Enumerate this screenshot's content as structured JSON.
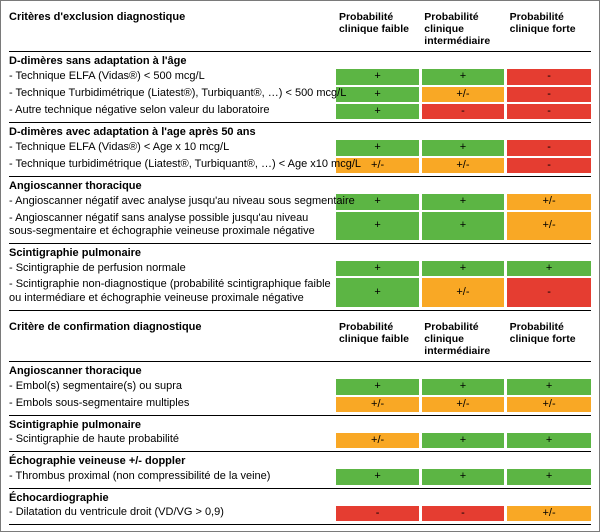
{
  "colors": {
    "green": "#5cb544",
    "orange": "#f9a825",
    "red": "#e53d31",
    "border": "#7a7a7a"
  },
  "symbols": {
    "plus": "+",
    "pm": "+/-",
    "minus": "-"
  },
  "headers": {
    "exclusion": "Critères d'exclusion diagnostique",
    "confirmation": "Critère de confirmation diagnostique",
    "faible": "Probabilité clinique faible",
    "inter": "Probabilité clinique intermédiaire",
    "forte": "Probabilité clinique forte"
  },
  "sections_exclusion": [
    {
      "title": "D-dimères sans adaptation à l'âge",
      "rows": [
        {
          "label": "- Technique ELFA (Vidas®) < 500 mcg/L",
          "cells": [
            "plus",
            "plus",
            "minus"
          ],
          "colors": [
            "green",
            "green",
            "red"
          ]
        },
        {
          "label": "- Technique Turbidimétrique (Liatest®), Turbiquant®, …) < 500 mcg/L",
          "cells": [
            "plus",
            "pm",
            "minus"
          ],
          "colors": [
            "green",
            "orange",
            "red"
          ]
        },
        {
          "label": "- Autre technique négative selon valeur du laboratoire",
          "cells": [
            "plus",
            "minus",
            "minus"
          ],
          "colors": [
            "green",
            "red",
            "red"
          ]
        }
      ]
    },
    {
      "title": "D-dimères avec adaptation à l'age après 50 ans",
      "rows": [
        {
          "label": "- Technique ELFA (Vidas®) < Age x 10 mcg/L",
          "cells": [
            "plus",
            "plus",
            "minus"
          ],
          "colors": [
            "green",
            "green",
            "red"
          ]
        },
        {
          "label": "- Technique turbidimétrique (Liatest®, Turbiquant®, …) < Age x10 mcg/L",
          "cells": [
            "pm",
            "pm",
            "minus"
          ],
          "colors": [
            "orange",
            "orange",
            "red"
          ]
        }
      ]
    },
    {
      "title": "Angioscanner thoracique",
      "rows": [
        {
          "label": "- Angioscanner négatif avec analyse jusqu'au niveau sous segmentaire",
          "cells": [
            "plus",
            "plus",
            "pm"
          ],
          "colors": [
            "green",
            "green",
            "orange"
          ]
        },
        {
          "label": "- Angioscanner négatif sans analyse possible jusqu'au niveau sous-segmentaire et échographie veineuse proximale négative",
          "wrap": true,
          "cells": [
            "plus",
            "plus",
            "pm"
          ],
          "colors": [
            "green",
            "green",
            "orange"
          ]
        }
      ]
    },
    {
      "title": "Scintigraphie pulmonaire",
      "rows": [
        {
          "label": "- Scintigraphie de perfusion normale",
          "cells": [
            "plus",
            "plus",
            "plus"
          ],
          "colors": [
            "green",
            "green",
            "green"
          ]
        },
        {
          "label": "- Scintigraphie non-diagnostique (probabilité scintigraphique faible ou intermédiare et échographie veineuse proximale négative",
          "wrap": true,
          "cells": [
            "plus",
            "pm",
            "minus"
          ],
          "colors": [
            "green",
            "orange",
            "red"
          ]
        }
      ]
    }
  ],
  "sections_confirmation": [
    {
      "title": "Angioscanner thoracique",
      "rows": [
        {
          "label": "- Embol(s) segmentaire(s) ou supra",
          "cells": [
            "plus",
            "plus",
            "plus"
          ],
          "colors": [
            "green",
            "green",
            "green"
          ]
        },
        {
          "label": "- Embols sous-segmentaire multiples",
          "cells": [
            "pm",
            "pm",
            "pm"
          ],
          "colors": [
            "orange",
            "orange",
            "orange"
          ]
        }
      ]
    },
    {
      "title": "Scintigraphie pulmonaire",
      "rows": [
        {
          "label": "- Scintigraphie de haute probabilité",
          "cells": [
            "pm",
            "plus",
            "plus"
          ],
          "colors": [
            "orange",
            "green",
            "green"
          ]
        }
      ]
    },
    {
      "title": "Échographie veineuse +/- doppler",
      "rows": [
        {
          "label": "- Thrombus proximal (non compressibilité de la veine)",
          "cells": [
            "plus",
            "plus",
            "plus"
          ],
          "colors": [
            "green",
            "green",
            "green"
          ]
        }
      ]
    },
    {
      "title": "Échocardiographie",
      "rows": [
        {
          "label": "- Dilatation du ventricule droit (VD/VG > 0,9)",
          "cells": [
            "minus",
            "minus",
            "pm"
          ],
          "colors": [
            "red",
            "red",
            "orange"
          ]
        }
      ]
    }
  ]
}
